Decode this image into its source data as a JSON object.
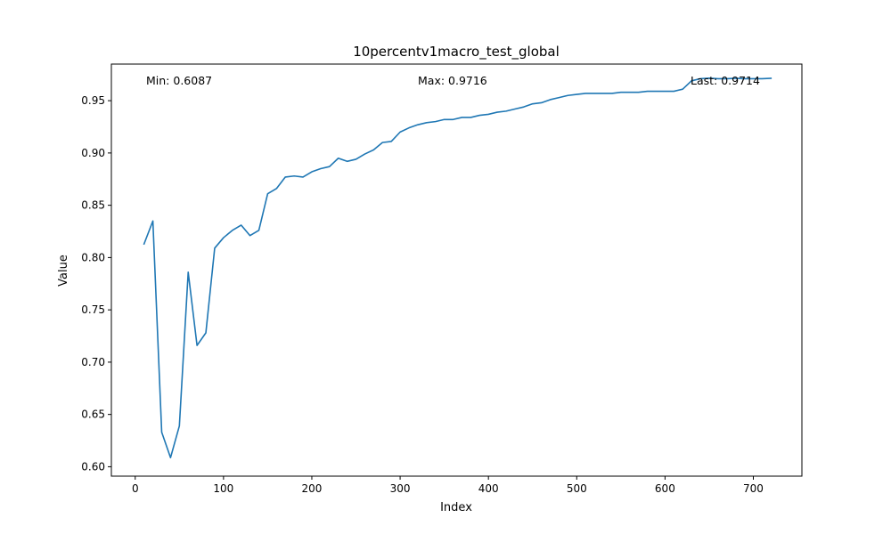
{
  "colors": {
    "line": "#1f77b4",
    "background": "#ffffff",
    "axes": "#000000"
  },
  "chart_data": {
    "type": "line",
    "title": "10percentv1macro_test_global",
    "xlabel": "Index",
    "ylabel": "Value",
    "xlim": [
      -27,
      755
    ],
    "ylim": [
      0.591,
      0.985
    ],
    "xticks": [
      0,
      100,
      200,
      300,
      400,
      500,
      600,
      700
    ],
    "yticks": [
      0.6,
      0.65,
      0.7,
      0.75,
      0.8,
      0.85,
      0.9,
      0.95
    ],
    "xtick_labels": [
      "0",
      "100",
      "200",
      "300",
      "400",
      "500",
      "600",
      "700"
    ],
    "ytick_labels": [
      "0.60",
      "0.65",
      "0.70",
      "0.75",
      "0.80",
      "0.85",
      "0.90",
      "0.95"
    ],
    "grid": false,
    "annotations": {
      "min": "Min: 0.6087",
      "max": "Max: 0.9716",
      "last": "Last: 0.9714"
    },
    "series": [
      {
        "x": [
          10,
          20,
          30,
          40,
          50,
          60,
          70,
          80,
          90,
          100,
          110,
          120,
          130,
          140,
          150,
          160,
          170,
          180,
          190,
          200,
          210,
          220,
          230,
          240,
          250,
          260,
          270,
          280,
          290,
          300,
          310,
          320,
          330,
          340,
          350,
          360,
          370,
          380,
          390,
          400,
          410,
          420,
          430,
          440,
          450,
          460,
          470,
          480,
          490,
          500,
          510,
          520,
          530,
          540,
          550,
          560,
          570,
          580,
          590,
          600,
          610,
          620,
          630,
          640,
          650,
          660,
          670,
          680,
          690,
          700,
          710,
          720
        ],
        "y": [
          0.813,
          0.835,
          0.633,
          0.6087,
          0.639,
          0.786,
          0.716,
          0.728,
          0.809,
          0.819,
          0.826,
          0.831,
          0.821,
          0.826,
          0.861,
          0.866,
          0.877,
          0.878,
          0.877,
          0.882,
          0.885,
          0.887,
          0.895,
          0.892,
          0.894,
          0.899,
          0.903,
          0.91,
          0.911,
          0.92,
          0.924,
          0.927,
          0.929,
          0.93,
          0.932,
          0.932,
          0.934,
          0.934,
          0.936,
          0.937,
          0.939,
          0.94,
          0.942,
          0.944,
          0.947,
          0.948,
          0.951,
          0.953,
          0.955,
          0.956,
          0.957,
          0.957,
          0.957,
          0.957,
          0.958,
          0.958,
          0.958,
          0.959,
          0.959,
          0.959,
          0.959,
          0.961,
          0.969,
          0.971,
          0.9716,
          0.971,
          0.971,
          0.9714,
          0.971,
          0.971,
          0.971,
          0.9714
        ]
      }
    ]
  }
}
